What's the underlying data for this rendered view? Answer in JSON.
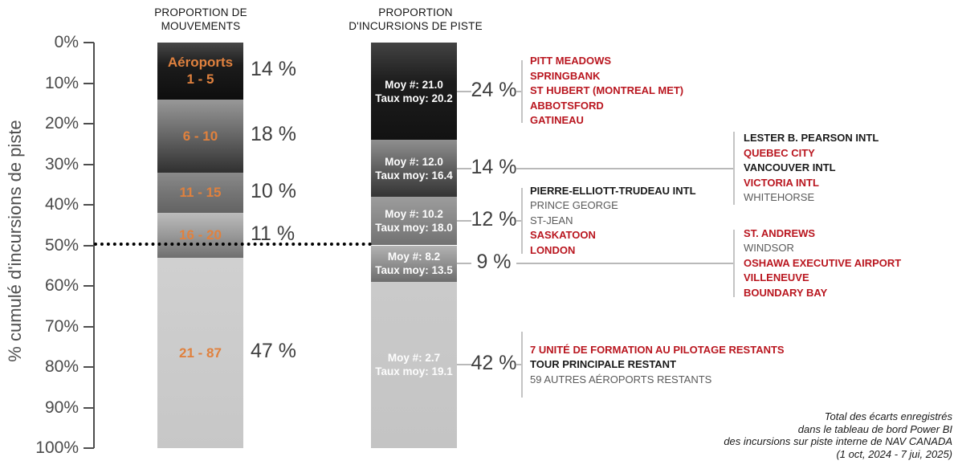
{
  "colors": {
    "orange_accent": "#e0813e",
    "red_airport": "#b9161f",
    "black_airport": "#1a1a1a",
    "gray_airport": "#5a5a5a",
    "connector": "#b9b9b9",
    "axis": "#4d4d4d"
  },
  "headers": {
    "movements": "PROPORTION DE\nMOUVEMENTS",
    "incursions": "PROPORTION\nD'INCURSIONS DE PISTE"
  },
  "y_axis": {
    "title": "% cumulé d'incursions de piste",
    "ticks": [
      "0%",
      "10%",
      "20%",
      "30%",
      "40%",
      "50%",
      "60%",
      "70%",
      "80%",
      "90%",
      "100%"
    ]
  },
  "footnote": "Total des écarts enregistrés\ndans le tableau de bord Power BI\ndes incursions sur piste interne de NAV CANADA\n(1 oct, 2024 - 7 jui, 2025)",
  "chart_data": {
    "type": "bar",
    "stacked": true,
    "ylabel": "% cumulé d'incursions de piste",
    "ylim": [
      0,
      100
    ],
    "grid": false,
    "reference_line": {
      "pct": 50,
      "style": "dotted"
    },
    "series": [
      {
        "name": "PROPORTION DE MOUVEMENTS",
        "segments": [
          {
            "label": "Aéroports\n1 - 5",
            "value_pct": 14,
            "display": "14 %",
            "fill": [
              "#484848 0%",
              "#1c1c1c 40%",
              "#0e0e0e 100%"
            ]
          },
          {
            "label": "6 - 10",
            "value_pct": 18,
            "display": "18 %",
            "fill": [
              "#989898 0%",
              "#606060 55%",
              "#303030 100%"
            ]
          },
          {
            "label": "11 - 15",
            "value_pct": 10,
            "display": "10 %",
            "fill": [
              "#8a8a8a 0%",
              "#757575 50%",
              "#636363 100%"
            ]
          },
          {
            "label": "16 - 20",
            "value_pct": 11,
            "display": "11 %",
            "fill": [
              "#bcbcbc 0%",
              "#959595 55%",
              "#6f6f6f 100%"
            ]
          },
          {
            "label": "21 - 87",
            "value_pct": 47,
            "display": "47 %",
            "fill": [
              "#d0d0d0 0%",
              "#c7c7c7 100%"
            ]
          }
        ]
      },
      {
        "name": "PROPORTION D'INCURSIONS DE PISTE",
        "segments": [
          {
            "label": "Moy #: 21.0\nTaux moy: 20.2",
            "value_pct": 24,
            "display": "24 %",
            "fill": [
              "#434343 0%",
              "#1d1d1d 40%",
              "#121212 100%"
            ]
          },
          {
            "label": "Moy #: 12.0\nTaux moy: 16.4",
            "value_pct": 14,
            "display": "14 %",
            "fill": [
              "#8f8f8f 0%",
              "#5b5b5b 55%",
              "#343434 100%"
            ]
          },
          {
            "label": "Moy #: 10.2\nTaux moy: 18.0",
            "value_pct": 12,
            "display": "12 %",
            "fill": [
              "#9c9c9c 0%",
              "#868686 55%",
              "#717171 100%"
            ]
          },
          {
            "label": "Moy #: 8.2\nTaux moy: 13.5",
            "value_pct": 9,
            "display": "9 %",
            "fill": [
              "#b2b2b2 0%",
              "#909090 50%",
              "#6d6d6d 100%"
            ]
          },
          {
            "label": "Moy #: 2.7\nTaux moy: 19.1",
            "value_pct": 42,
            "display": "42 %",
            "fill": [
              "#cacaca 0%",
              "#c4c4c4 100%"
            ]
          }
        ]
      }
    ],
    "annotations": [
      {
        "segment": 0,
        "column": 1,
        "airports": [
          {
            "text": "PITT MEADOWS",
            "style": "red"
          },
          {
            "text": "SPRINGBANK",
            "style": "red"
          },
          {
            "text": "ST HUBERT (MONTREAL MET)",
            "style": "red"
          },
          {
            "text": "ABBOTSFORD",
            "style": "red"
          },
          {
            "text": "GATINEAU",
            "style": "red"
          }
        ]
      },
      {
        "segment": 1,
        "column": 2,
        "airports": [
          {
            "text": "LESTER B. PEARSON INTL",
            "style": "black"
          },
          {
            "text": "QUEBEC CITY",
            "style": "red"
          },
          {
            "text": "VANCOUVER INTL",
            "style": "black"
          },
          {
            "text": "VICTORIA INTL",
            "style": "red"
          },
          {
            "text": "WHITEHORSE",
            "style": "gray"
          }
        ]
      },
      {
        "segment": 2,
        "column": 1,
        "airports": [
          {
            "text": "PIERRE-ELLIOTT-TRUDEAU INTL",
            "style": "black"
          },
          {
            "text": "PRINCE GEORGE",
            "style": "gray"
          },
          {
            "text": "ST-JEAN",
            "style": "gray"
          },
          {
            "text": "SASKATOON",
            "style": "red"
          },
          {
            "text": "LONDON",
            "style": "red"
          }
        ]
      },
      {
        "segment": 3,
        "column": 2,
        "airports": [
          {
            "text": "ST. ANDREWS",
            "style": "red"
          },
          {
            "text": "WINDSOR",
            "style": "gray"
          },
          {
            "text": "OSHAWA EXECUTIVE AIRPORT",
            "style": "red"
          },
          {
            "text": "VILLENEUVE",
            "style": "red"
          },
          {
            "text": "BOUNDARY BAY",
            "style": "red"
          }
        ]
      },
      {
        "segment": 4,
        "column": 1,
        "airports": [
          {
            "text": "7 UNITÉ DE FORMATION AU PILOTAGE RESTANTS",
            "style": "red"
          },
          {
            "text": "TOUR PRINCIPALE RESTANT",
            "style": "black"
          },
          {
            "text": "59 AUTRES AÉROPORTS RESTANTS",
            "style": "gray"
          }
        ]
      }
    ]
  }
}
